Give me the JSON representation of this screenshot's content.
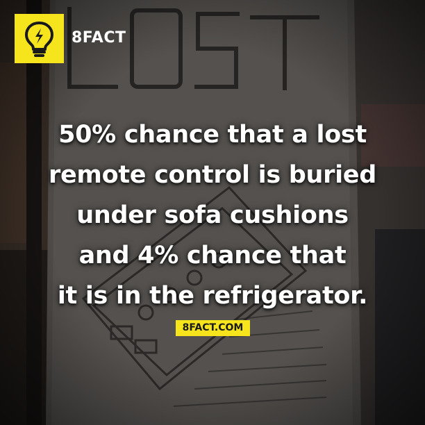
{
  "brand": {
    "name": "8FACT",
    "icon": "lightbulb-icon",
    "accent_color": "#f6e51c"
  },
  "fact": {
    "lines": [
      "50% chance that a lost",
      "remote control is buried",
      "under sofa cushions",
      "and 4% chance that",
      "it is in the refrigerator."
    ]
  },
  "footer": {
    "site": "8FACT.COM"
  }
}
